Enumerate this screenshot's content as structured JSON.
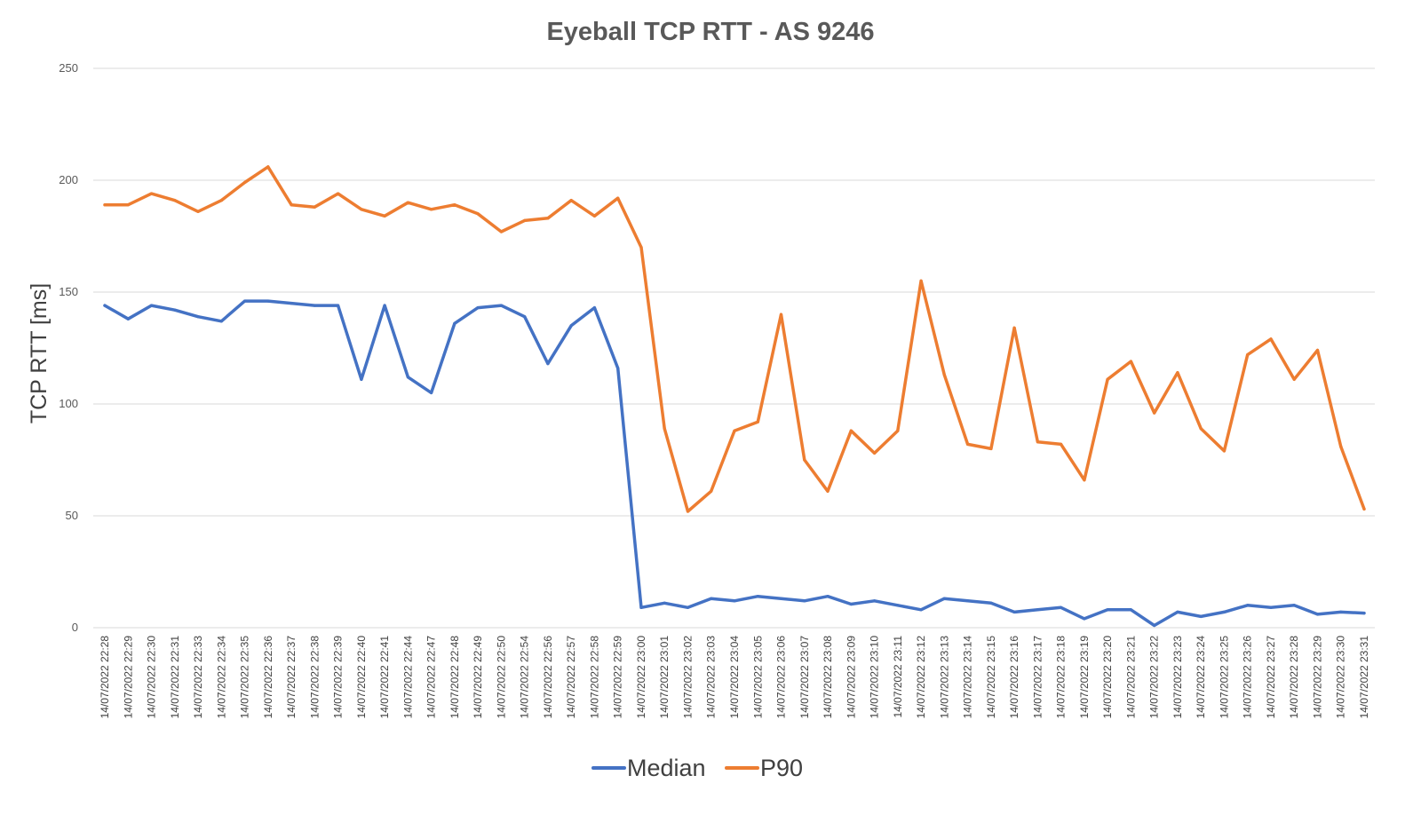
{
  "chart_data": {
    "type": "line",
    "title": "Eyeball TCP RTT - AS 9246",
    "xlabel": "",
    "ylabel": "TCP RTT [ms]",
    "ylim": [
      0,
      250
    ],
    "yticks": [
      0,
      50,
      100,
      150,
      200,
      250
    ],
    "grid": true,
    "legend_position": "bottom",
    "categories": [
      "14/07/2022 22:28",
      "14/07/2022 22:29",
      "14/07/2022 22:30",
      "14/07/2022 22:31",
      "14/07/2022 22:33",
      "14/07/2022 22:34",
      "14/07/2022 22:35",
      "14/07/2022 22:36",
      "14/07/2022 22:37",
      "14/07/2022 22:38",
      "14/07/2022 22:39",
      "14/07/2022 22:40",
      "14/07/2022 22:41",
      "14/07/2022 22:44",
      "14/07/2022 22:47",
      "14/07/2022 22:48",
      "14/07/2022 22:49",
      "14/07/2022 22:50",
      "14/07/2022 22:54",
      "14/07/2022 22:56",
      "14/07/2022 22:57",
      "14/07/2022 22:58",
      "14/07/2022 22:59",
      "14/07/2022 23:00",
      "14/07/2022 23:01",
      "14/07/2022 23:02",
      "14/07/2022 23:03",
      "14/07/2022 23:04",
      "14/07/2022 23:05",
      "14/07/2022 23:06",
      "14/07/2022 23:07",
      "14/07/2022 23:08",
      "14/07/2022 23:09",
      "14/07/2022 23:10",
      "14/07/2022 23:11",
      "14/07/2022 23:12",
      "14/07/2022 23:13",
      "14/07/2022 23:14",
      "14/07/2022 23:15",
      "14/07/2022 23:16",
      "14/07/2022 23:17",
      "14/07/2022 23:18",
      "14/07/2022 23:19",
      "14/07/2022 23:20",
      "14/07/2022 23:21",
      "14/07/2022 23:22",
      "14/07/2022 23:23",
      "14/07/2022 23:24",
      "14/07/2022 23:25",
      "14/07/2022 23:26",
      "14/07/2022 23:27",
      "14/07/2022 23:28",
      "14/07/2022 23:29",
      "14/07/2022 23:30",
      "14/07/2022 23:31"
    ],
    "series": [
      {
        "name": "Median",
        "color": "#4472C4",
        "values": [
          144,
          138,
          144,
          142,
          139,
          137,
          146,
          146,
          145,
          144,
          144,
          111,
          144,
          112,
          105,
          136,
          143,
          144,
          139,
          118,
          135,
          143,
          116,
          9,
          11,
          9,
          13,
          12,
          14,
          13,
          12,
          14,
          10.5,
          12,
          10,
          8,
          13,
          12,
          11,
          7,
          8,
          9,
          4,
          8,
          8,
          1,
          7,
          5,
          7,
          10,
          9,
          10,
          6,
          7,
          6.5
        ]
      },
      {
        "name": "P90",
        "color": "#ED7D31",
        "values": [
          189,
          189,
          194,
          191,
          186,
          191,
          199,
          206,
          189,
          188,
          194,
          187,
          184,
          190,
          187,
          189,
          185,
          177,
          182,
          183,
          191,
          184,
          192,
          170,
          89,
          52,
          61,
          88,
          92,
          140,
          75,
          61,
          88,
          78,
          88,
          155,
          113,
          82,
          80,
          134,
          83,
          82,
          66,
          111,
          119,
          96,
          114,
          89,
          79,
          122,
          129,
          111,
          124,
          81,
          53
        ]
      }
    ]
  }
}
